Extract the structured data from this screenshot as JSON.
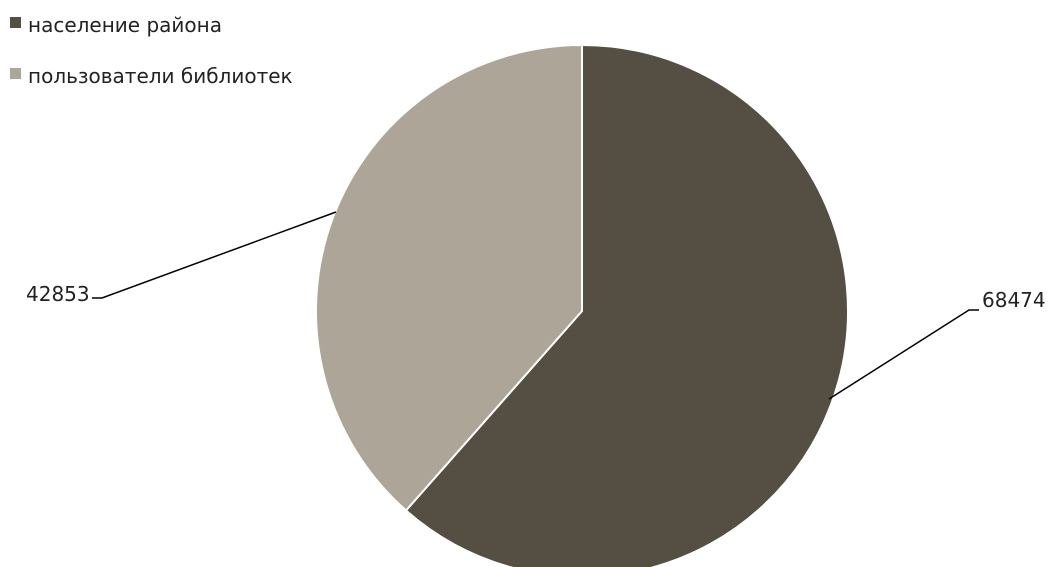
{
  "chart_data": {
    "type": "pie",
    "title": "",
    "legend_position": "top-left",
    "categories": [
      "население района",
      "пользователи библиотек"
    ],
    "values": [
      68474,
      42853
    ],
    "colors": [
      "#554f43",
      "#ada597"
    ],
    "data_labels": [
      "68474",
      "42853"
    ]
  }
}
